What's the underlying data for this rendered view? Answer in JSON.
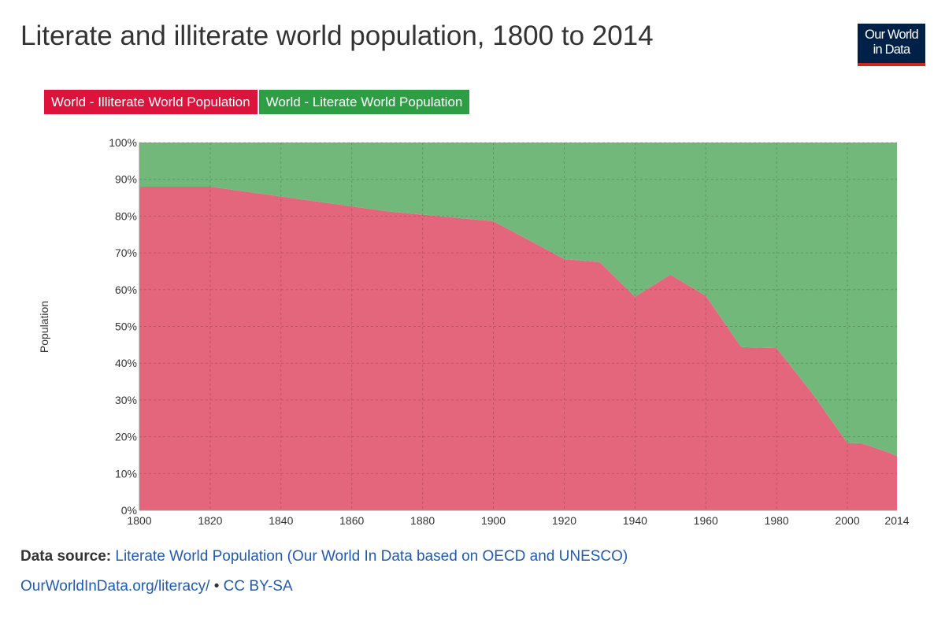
{
  "title": "Literate and illiterate world population, 1800 to 2014",
  "logo": {
    "line1": "Our World",
    "line2": "in Data"
  },
  "legend": [
    {
      "label": "World - Illiterate World Population",
      "color": "#dc143c"
    },
    {
      "label": "World - Literate World Population",
      "color": "#2e9e45"
    }
  ],
  "ylabel": "Population",
  "footer": {
    "source_label": "Data source:",
    "source_text": "Literate World Population (Our World In Data based on OECD and UNESCO)",
    "url": "OurWorldInData.org/literacy/",
    "separator": "•",
    "license": "CC BY-SA"
  },
  "chart_data": {
    "type": "area",
    "stacked": "percent",
    "x": [
      1800,
      1820,
      1870,
      1880,
      1900,
      1910,
      1920,
      1930,
      1940,
      1950,
      1960,
      1970,
      1980,
      1990,
      2000,
      2004,
      2010,
      2014
    ],
    "series": [
      {
        "name": "World - Illiterate World Population",
        "color": "#e4667c",
        "values": [
          88,
          88,
          81.3,
          80.4,
          78.6,
          73.5,
          68.3,
          67.5,
          58.1,
          64.1,
          58.3,
          44.4,
          44.1,
          31.9,
          18.3,
          18.2,
          16.3,
          14.8
        ]
      },
      {
        "name": "World - Literate World Population",
        "color": "#72b87b",
        "values": [
          12,
          12,
          18.7,
          19.6,
          21.4,
          26.5,
          31.7,
          32.5,
          41.9,
          35.9,
          41.7,
          55.6,
          55.9,
          68.1,
          81.7,
          81.8,
          83.7,
          85.2
        ]
      }
    ],
    "xticks": [
      "1800",
      "1820",
      "1840",
      "1860",
      "1880",
      "1900",
      "1920",
      "1940",
      "1960",
      "1980",
      "2000",
      "2014"
    ],
    "yticks": [
      "0%",
      "10%",
      "20%",
      "30%",
      "40%",
      "50%",
      "60%",
      "70%",
      "80%",
      "90%",
      "100%"
    ],
    "xlim": [
      1800,
      2014
    ],
    "ylim": [
      0,
      100
    ],
    "grid": true,
    "legend_position": "top-left"
  }
}
